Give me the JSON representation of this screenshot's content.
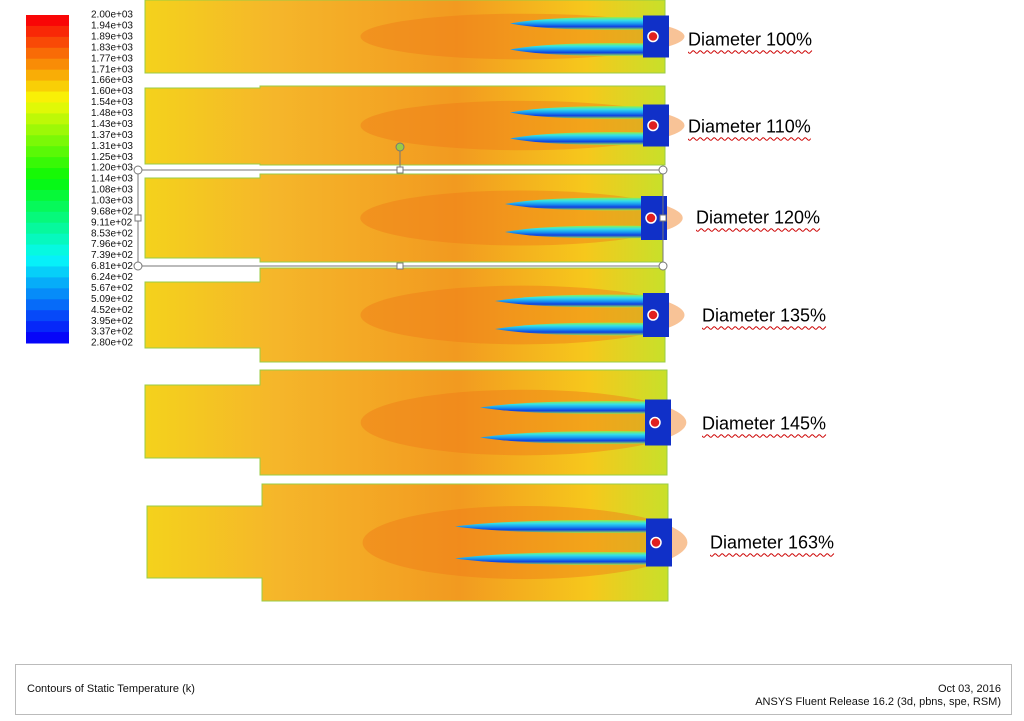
{
  "legend": {
    "labels": [
      "2.00e+03",
      "1.94e+03",
      "1.89e+03",
      "1.83e+03",
      "1.77e+03",
      "1.71e+03",
      "1.66e+03",
      "1.60e+03",
      "1.54e+03",
      "1.48e+03",
      "1.43e+03",
      "1.37e+03",
      "1.31e+03",
      "1.25e+03",
      "1.20e+03",
      "1.14e+03",
      "1.08e+03",
      "1.03e+03",
      "9.68e+02",
      "9.11e+02",
      "8.53e+02",
      "7.96e+02",
      "7.39e+02",
      "6.81e+02",
      "6.24e+02",
      "5.67e+02",
      "5.09e+02",
      "4.52e+02",
      "3.95e+02",
      "3.37e+02",
      "2.80e+02"
    ]
  },
  "cases": [
    {
      "label": "Diameter 100%"
    },
    {
      "label": "Diameter 110%"
    },
    {
      "label": "Diameter 120%"
    },
    {
      "label": "Diameter 135%"
    },
    {
      "label": "Diameter 145%"
    },
    {
      "label": "Diameter 163%"
    }
  ],
  "footer": {
    "title": "Contours of Static Temperature (k)",
    "date": "Oct 03, 2016",
    "release": "ANSYS Fluent Release 16.2 (3d, pbns, spe, RSM)"
  }
}
